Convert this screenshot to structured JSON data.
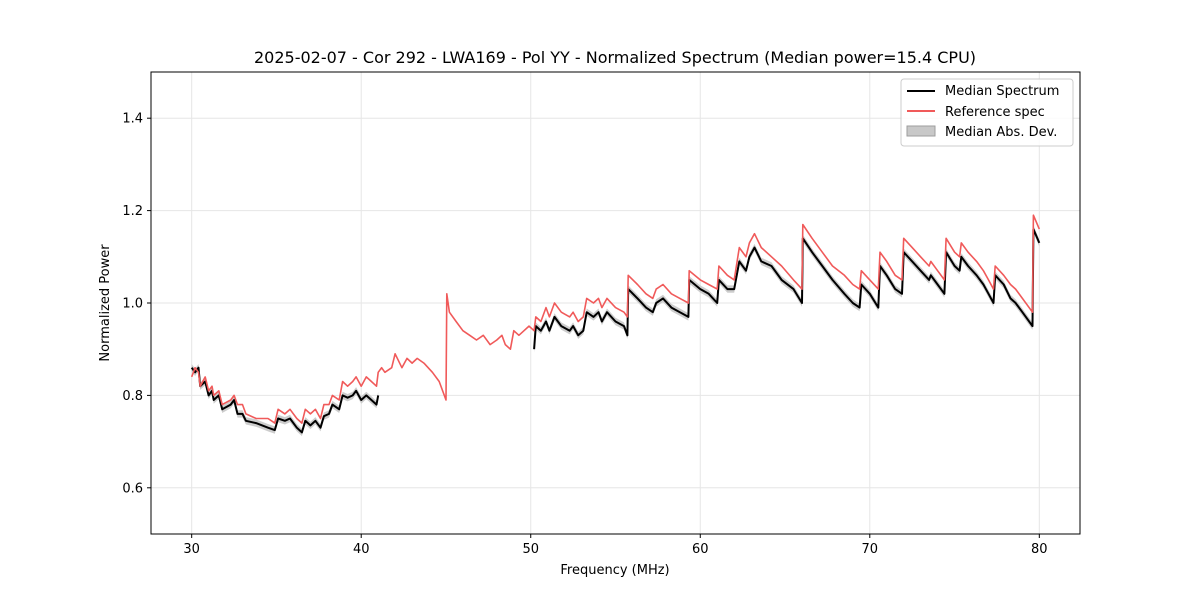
{
  "chart_data": {
    "type": "line",
    "title": "2025-02-07 - Cor 292 - LWA169 - Pol YY - Normalized Spectrum (Median power=15.4 CPU)",
    "xlabel": "Frequency (MHz)",
    "ylabel": "Normalized Power",
    "xlim": [
      27.6,
      82.4
    ],
    "ylim": [
      0.5,
      1.5
    ],
    "xticks": [
      30,
      40,
      50,
      60,
      70,
      80
    ],
    "yticks": [
      0.6,
      0.8,
      1.0,
      1.2,
      1.4
    ],
    "xtick_labels": [
      "30",
      "40",
      "50",
      "60",
      "70",
      "80"
    ],
    "ytick_labels": [
      "0.6",
      "0.8",
      "1.0",
      "1.2",
      "1.4"
    ],
    "grid": true,
    "legend_position": "top-right",
    "legend": [
      {
        "label": "Median Spectrum",
        "kind": "line",
        "color": "#000000"
      },
      {
        "label": "Reference spec",
        "kind": "line",
        "color": "#f05a5a"
      },
      {
        "label": "Median Abs. Dev.",
        "kind": "patch",
        "color": "#bdbdbd"
      }
    ],
    "mad_halfwidth": 0.008,
    "series": [
      {
        "name": "Reference spec",
        "color": "#f05a5a",
        "segments": [
          [
            [
              30.0,
              0.84
            ],
            [
              30.2,
              0.86
            ],
            [
              30.4,
              0.85
            ],
            [
              30.5,
              0.82
            ],
            [
              30.8,
              0.84
            ],
            [
              31.0,
              0.81
            ],
            [
              31.2,
              0.82
            ],
            [
              31.3,
              0.8
            ],
            [
              31.6,
              0.81
            ],
            [
              31.8,
              0.78
            ],
            [
              32.3,
              0.79
            ],
            [
              32.5,
              0.8
            ],
            [
              32.7,
              0.78
            ],
            [
              33.0,
              0.78
            ],
            [
              33.2,
              0.76
            ],
            [
              33.8,
              0.75
            ],
            [
              34.5,
              0.75
            ],
            [
              34.9,
              0.74
            ],
            [
              35.1,
              0.77
            ],
            [
              35.5,
              0.76
            ],
            [
              35.8,
              0.77
            ],
            [
              36.2,
              0.75
            ],
            [
              36.5,
              0.74
            ],
            [
              36.7,
              0.77
            ],
            [
              37.0,
              0.76
            ],
            [
              37.3,
              0.77
            ],
            [
              37.6,
              0.75
            ],
            [
              37.8,
              0.78
            ],
            [
              38.1,
              0.78
            ],
            [
              38.3,
              0.8
            ],
            [
              38.7,
              0.79
            ],
            [
              38.9,
              0.83
            ],
            [
              39.2,
              0.82
            ],
            [
              39.5,
              0.83
            ],
            [
              39.7,
              0.84
            ],
            [
              40.0,
              0.82
            ],
            [
              40.3,
              0.84
            ],
            [
              40.6,
              0.83
            ],
            [
              40.9,
              0.82
            ],
            [
              41.0,
              0.85
            ],
            [
              41.2,
              0.86
            ],
            [
              41.4,
              0.85
            ],
            [
              41.8,
              0.86
            ],
            [
              42.0,
              0.89
            ],
            [
              42.4,
              0.86
            ],
            [
              42.7,
              0.88
            ],
            [
              43.0,
              0.87
            ],
            [
              43.3,
              0.88
            ],
            [
              43.7,
              0.87
            ],
            [
              44.2,
              0.85
            ],
            [
              44.6,
              0.83
            ],
            [
              45.0,
              0.79
            ],
            [
              45.05,
              1.02
            ],
            [
              45.2,
              0.98
            ],
            [
              45.6,
              0.96
            ],
            [
              46.0,
              0.94
            ],
            [
              46.4,
              0.93
            ],
            [
              46.8,
              0.92
            ],
            [
              47.2,
              0.93
            ],
            [
              47.6,
              0.91
            ],
            [
              48.0,
              0.92
            ],
            [
              48.3,
              0.93
            ],
            [
              48.5,
              0.91
            ],
            [
              48.8,
              0.9
            ],
            [
              49.0,
              0.94
            ],
            [
              49.3,
              0.93
            ],
            [
              49.6,
              0.94
            ],
            [
              49.9,
              0.95
            ],
            [
              50.2,
              0.94
            ],
            [
              50.3,
              0.97
            ],
            [
              50.6,
              0.96
            ],
            [
              50.9,
              0.99
            ],
            [
              51.1,
              0.97
            ],
            [
              51.4,
              1.0
            ],
            [
              51.8,
              0.98
            ],
            [
              52.3,
              0.97
            ],
            [
              52.5,
              0.98
            ],
            [
              52.8,
              0.96
            ],
            [
              53.1,
              0.97
            ],
            [
              53.3,
              1.01
            ],
            [
              53.7,
              1.0
            ],
            [
              54.0,
              1.01
            ],
            [
              54.2,
              0.99
            ],
            [
              54.5,
              1.01
            ],
            [
              55.0,
              0.99
            ],
            [
              55.5,
              0.98
            ],
            [
              55.7,
              0.97
            ],
            [
              55.75,
              1.06
            ],
            [
              56.3,
              1.04
            ],
            [
              56.8,
              1.02
            ],
            [
              57.2,
              1.01
            ],
            [
              57.4,
              1.03
            ],
            [
              57.8,
              1.04
            ],
            [
              58.3,
              1.02
            ],
            [
              58.8,
              1.01
            ],
            [
              59.3,
              1.0
            ],
            [
              59.35,
              1.07
            ],
            [
              60.0,
              1.05
            ],
            [
              60.5,
              1.04
            ],
            [
              61.0,
              1.03
            ],
            [
              61.1,
              1.08
            ],
            [
              61.6,
              1.06
            ],
            [
              62.0,
              1.05
            ],
            [
              62.3,
              1.12
            ],
            [
              62.7,
              1.1
            ],
            [
              62.9,
              1.13
            ],
            [
              63.2,
              1.15
            ],
            [
              63.6,
              1.12
            ],
            [
              64.2,
              1.1
            ],
            [
              64.8,
              1.08
            ],
            [
              65.5,
              1.05
            ],
            [
              66.0,
              1.03
            ],
            [
              66.05,
              1.17
            ],
            [
              66.6,
              1.14
            ],
            [
              67.2,
              1.11
            ],
            [
              67.8,
              1.08
            ],
            [
              68.5,
              1.06
            ],
            [
              69.0,
              1.04
            ],
            [
              69.4,
              1.03
            ],
            [
              69.5,
              1.07
            ],
            [
              70.0,
              1.05
            ],
            [
              70.5,
              1.03
            ],
            [
              70.6,
              1.11
            ],
            [
              71.0,
              1.09
            ],
            [
              71.5,
              1.06
            ],
            [
              71.9,
              1.05
            ],
            [
              72.0,
              1.14
            ],
            [
              72.5,
              1.12
            ],
            [
              73.0,
              1.1
            ],
            [
              73.5,
              1.08
            ],
            [
              73.6,
              1.09
            ],
            [
              74.0,
              1.07
            ],
            [
              74.4,
              1.05
            ],
            [
              74.5,
              1.14
            ],
            [
              75.0,
              1.11
            ],
            [
              75.3,
              1.1
            ],
            [
              75.4,
              1.13
            ],
            [
              75.8,
              1.11
            ],
            [
              76.3,
              1.09
            ],
            [
              76.7,
              1.07
            ],
            [
              77.0,
              1.05
            ],
            [
              77.3,
              1.03
            ],
            [
              77.4,
              1.08
            ],
            [
              77.9,
              1.06
            ],
            [
              78.3,
              1.04
            ],
            [
              78.6,
              1.03
            ],
            [
              79.0,
              1.01
            ],
            [
              79.6,
              0.98
            ],
            [
              79.65,
              1.19
            ],
            [
              80.0,
              1.16
            ]
          ]
        ]
      },
      {
        "name": "Median Spectrum",
        "color": "#000000",
        "segments": [
          [
            [
              30.0,
              0.86
            ],
            [
              30.2,
              0.85
            ],
            [
              30.4,
              0.86
            ],
            [
              30.5,
              0.82
            ],
            [
              30.8,
              0.83
            ],
            [
              31.0,
              0.8
            ],
            [
              31.2,
              0.81
            ],
            [
              31.3,
              0.79
            ],
            [
              31.6,
              0.8
            ],
            [
              31.8,
              0.77
            ],
            [
              32.3,
              0.78
            ],
            [
              32.5,
              0.79
            ],
            [
              32.7,
              0.76
            ],
            [
              33.0,
              0.76
            ],
            [
              33.2,
              0.745
            ],
            [
              33.8,
              0.74
            ],
            [
              34.5,
              0.73
            ],
            [
              34.9,
              0.725
            ],
            [
              35.1,
              0.75
            ],
            [
              35.5,
              0.745
            ],
            [
              35.8,
              0.75
            ],
            [
              36.2,
              0.73
            ],
            [
              36.5,
              0.72
            ],
            [
              36.7,
              0.745
            ],
            [
              37.0,
              0.735
            ],
            [
              37.3,
              0.745
            ],
            [
              37.6,
              0.73
            ],
            [
              37.8,
              0.755
            ],
            [
              38.1,
              0.76
            ],
            [
              38.3,
              0.78
            ],
            [
              38.7,
              0.77
            ],
            [
              38.9,
              0.8
            ],
            [
              39.2,
              0.795
            ],
            [
              39.5,
              0.8
            ],
            [
              39.7,
              0.81
            ],
            [
              40.0,
              0.79
            ],
            [
              40.3,
              0.8
            ],
            [
              40.6,
              0.79
            ],
            [
              40.9,
              0.78
            ],
            [
              41.0,
              0.8
            ]
          ],
          [
            [
              50.2,
              0.9
            ],
            [
              50.3,
              0.95
            ],
            [
              50.6,
              0.94
            ],
            [
              50.9,
              0.96
            ],
            [
              51.1,
              0.94
            ],
            [
              51.4,
              0.97
            ],
            [
              51.8,
              0.95
            ],
            [
              52.3,
              0.94
            ],
            [
              52.5,
              0.95
            ],
            [
              52.8,
              0.93
            ],
            [
              53.1,
              0.94
            ],
            [
              53.3,
              0.98
            ],
            [
              53.7,
              0.97
            ],
            [
              54.0,
              0.98
            ],
            [
              54.2,
              0.96
            ],
            [
              54.5,
              0.98
            ],
            [
              55.0,
              0.96
            ],
            [
              55.5,
              0.95
            ],
            [
              55.7,
              0.93
            ],
            [
              55.75,
              1.03
            ],
            [
              56.3,
              1.01
            ],
            [
              56.8,
              0.99
            ],
            [
              57.2,
              0.98
            ],
            [
              57.4,
              1.0
            ],
            [
              57.8,
              1.01
            ],
            [
              58.3,
              0.99
            ],
            [
              58.8,
              0.98
            ],
            [
              59.3,
              0.97
            ],
            [
              59.35,
              1.05
            ],
            [
              60.0,
              1.03
            ],
            [
              60.5,
              1.02
            ],
            [
              61.0,
              1.0
            ],
            [
              61.1,
              1.05
            ],
            [
              61.6,
              1.03
            ],
            [
              62.0,
              1.03
            ],
            [
              62.3,
              1.09
            ],
            [
              62.7,
              1.07
            ],
            [
              62.9,
              1.1
            ],
            [
              63.2,
              1.12
            ],
            [
              63.6,
              1.09
            ],
            [
              64.2,
              1.08
            ],
            [
              64.8,
              1.05
            ],
            [
              65.5,
              1.03
            ],
            [
              66.0,
              1.0
            ],
            [
              66.05,
              1.14
            ],
            [
              66.6,
              1.11
            ],
            [
              67.2,
              1.08
            ],
            [
              67.8,
              1.05
            ],
            [
              68.5,
              1.02
            ],
            [
              69.0,
              1.0
            ],
            [
              69.4,
              0.99
            ],
            [
              69.5,
              1.04
            ],
            [
              70.0,
              1.02
            ],
            [
              70.5,
              0.99
            ],
            [
              70.6,
              1.08
            ],
            [
              71.0,
              1.06
            ],
            [
              71.5,
              1.03
            ],
            [
              71.9,
              1.02
            ],
            [
              72.0,
              1.11
            ],
            [
              72.5,
              1.09
            ],
            [
              73.0,
              1.07
            ],
            [
              73.5,
              1.05
            ],
            [
              73.6,
              1.06
            ],
            [
              74.0,
              1.04
            ],
            [
              74.4,
              1.02
            ],
            [
              74.5,
              1.11
            ],
            [
              75.0,
              1.08
            ],
            [
              75.3,
              1.07
            ],
            [
              75.4,
              1.1
            ],
            [
              75.8,
              1.08
            ],
            [
              76.3,
              1.06
            ],
            [
              76.7,
              1.04
            ],
            [
              77.0,
              1.02
            ],
            [
              77.3,
              1.0
            ],
            [
              77.4,
              1.06
            ],
            [
              77.9,
              1.04
            ],
            [
              78.3,
              1.01
            ],
            [
              78.6,
              1.0
            ],
            [
              79.0,
              0.98
            ],
            [
              79.6,
              0.95
            ],
            [
              79.65,
              1.16
            ],
            [
              80.0,
              1.13
            ]
          ]
        ]
      }
    ]
  }
}
